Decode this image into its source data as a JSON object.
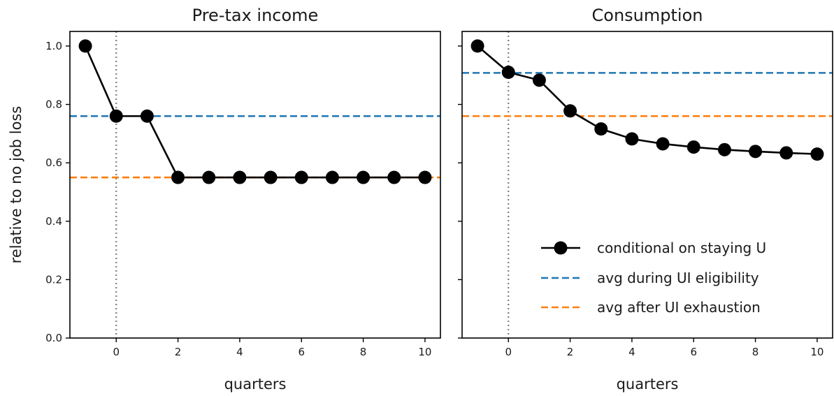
{
  "chart_data": [
    {
      "type": "line",
      "title": "Pre-tax income",
      "xlabel": "quarters",
      "ylabel": "relative to no job loss",
      "xlim": [
        -1.5,
        10.5
      ],
      "ylim": [
        0.0,
        1.05
      ],
      "xticks": [
        0,
        2,
        4,
        6,
        8,
        10
      ],
      "yticks": [
        0.0,
        0.2,
        0.4,
        0.6,
        0.8,
        1.0
      ],
      "ytick_labels": [
        "0.0",
        "0.2",
        "0.4",
        "0.6",
        "0.8",
        "1.0"
      ],
      "show_yticklabels": true,
      "vline_x": 0,
      "series": [
        {
          "name": "conditional on staying U",
          "color": "#000000",
          "style": "line-marker",
          "x": [
            -1,
            0,
            1,
            2,
            3,
            4,
            5,
            6,
            7,
            8,
            9,
            10
          ],
          "y": [
            1.0,
            0.76,
            0.76,
            0.55,
            0.55,
            0.55,
            0.55,
            0.55,
            0.55,
            0.55,
            0.55,
            0.55
          ]
        },
        {
          "name": "avg during UI eligibility",
          "color": "#1f77b4",
          "style": "hline",
          "y": 0.76
        },
        {
          "name": "avg after UI exhaustion",
          "color": "#ff7f0e",
          "style": "hline",
          "y": 0.55
        }
      ],
      "legend": false
    },
    {
      "type": "line",
      "title": "Consumption",
      "xlabel": "quarters",
      "ylabel": "",
      "xlim": [
        -1.5,
        10.5
      ],
      "ylim": [
        0.0,
        1.05
      ],
      "xticks": [
        0,
        2,
        4,
        6,
        8,
        10
      ],
      "yticks": [
        0.0,
        0.2,
        0.4,
        0.6,
        0.8,
        1.0
      ],
      "show_yticklabels": false,
      "vline_x": 0,
      "series": [
        {
          "name": "conditional on staying U",
          "color": "#000000",
          "style": "line-marker",
          "x": [
            -1,
            0,
            1,
            2,
            3,
            4,
            5,
            6,
            7,
            8,
            9,
            10
          ],
          "y": [
            1.0,
            0.91,
            0.883,
            0.778,
            0.716,
            0.682,
            0.665,
            0.654,
            0.645,
            0.639,
            0.634,
            0.63
          ]
        },
        {
          "name": "avg during UI eligibility",
          "color": "#1f77b4",
          "style": "hline",
          "y": 0.908
        },
        {
          "name": "avg after UI exhaustion",
          "color": "#ff7f0e",
          "style": "hline",
          "y": 0.76
        }
      ],
      "legend": true,
      "legend_position": "lower-right"
    }
  ]
}
